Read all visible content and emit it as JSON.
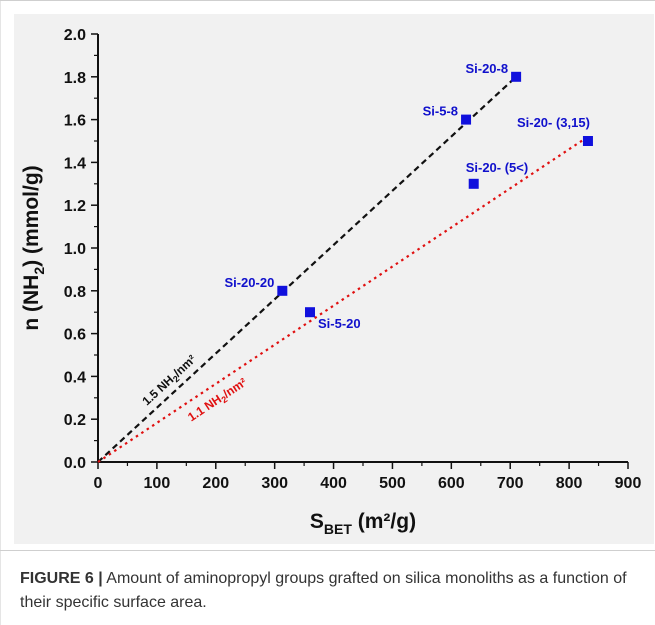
{
  "chart_data": {
    "type": "scatter",
    "xlabel": {
      "main": "S",
      "sub": "BET",
      "unit": " (m²/g)"
    },
    "ylabel": {
      "main": "n (NH",
      "sub": "2",
      "unit": ") (mmol/g)"
    },
    "xlim": [
      0,
      900
    ],
    "ylim": [
      0,
      2.0
    ],
    "xticks": [
      0,
      100,
      200,
      300,
      400,
      500,
      600,
      700,
      800,
      900
    ],
    "yticks": [
      0.0,
      0.2,
      0.4,
      0.6,
      0.8,
      1.0,
      1.2,
      1.4,
      1.6,
      1.8,
      2.0
    ],
    "ytick_labels": [
      "0.0",
      "0.2",
      "0.4",
      "0.6",
      "0.8",
      "1.0",
      "1.2",
      "1.4",
      "1.6",
      "1.8",
      "2.0"
    ],
    "grid": false,
    "points": [
      {
        "label": "Si-20-8",
        "x": 710,
        "y": 1.8,
        "label_pos": "left"
      },
      {
        "label": "Si-5-8",
        "x": 625,
        "y": 1.6,
        "label_pos": "left"
      },
      {
        "label": "Si-20- (3,15)",
        "x": 832,
        "y": 1.5,
        "label_pos": "above-left"
      },
      {
        "label": "Si-20- (5<)",
        "x": 638,
        "y": 1.3,
        "label_pos": "above"
      },
      {
        "label": "Si-20-20",
        "x": 313,
        "y": 0.8,
        "label_pos": "left"
      },
      {
        "label": "Si-5-20",
        "x": 360,
        "y": 0.7,
        "label_pos": "below-right"
      }
    ],
    "fit_lines": [
      {
        "from": [
          0,
          0
        ],
        "to": [
          710,
          1.8
        ],
        "label_main": "1.5 NH",
        "label_sub": "2",
        "label_end": "/nm²",
        "color": "#111111",
        "style": "dashed"
      },
      {
        "from": [
          0,
          0
        ],
        "to": [
          832,
          1.52
        ],
        "label_main": "1.1 NH",
        "label_sub": "2",
        "label_end": "/nm²",
        "color": "#e01010",
        "style": "dotted"
      }
    ],
    "colors": {
      "point": "#1010dd",
      "point_label": "#1010cc",
      "axis": "#111111"
    }
  },
  "caption": {
    "label": "FIGURE 6 |",
    "text": " Amount of aminopropyl groups grafted on silica monoliths as a function of their specific surface area."
  }
}
